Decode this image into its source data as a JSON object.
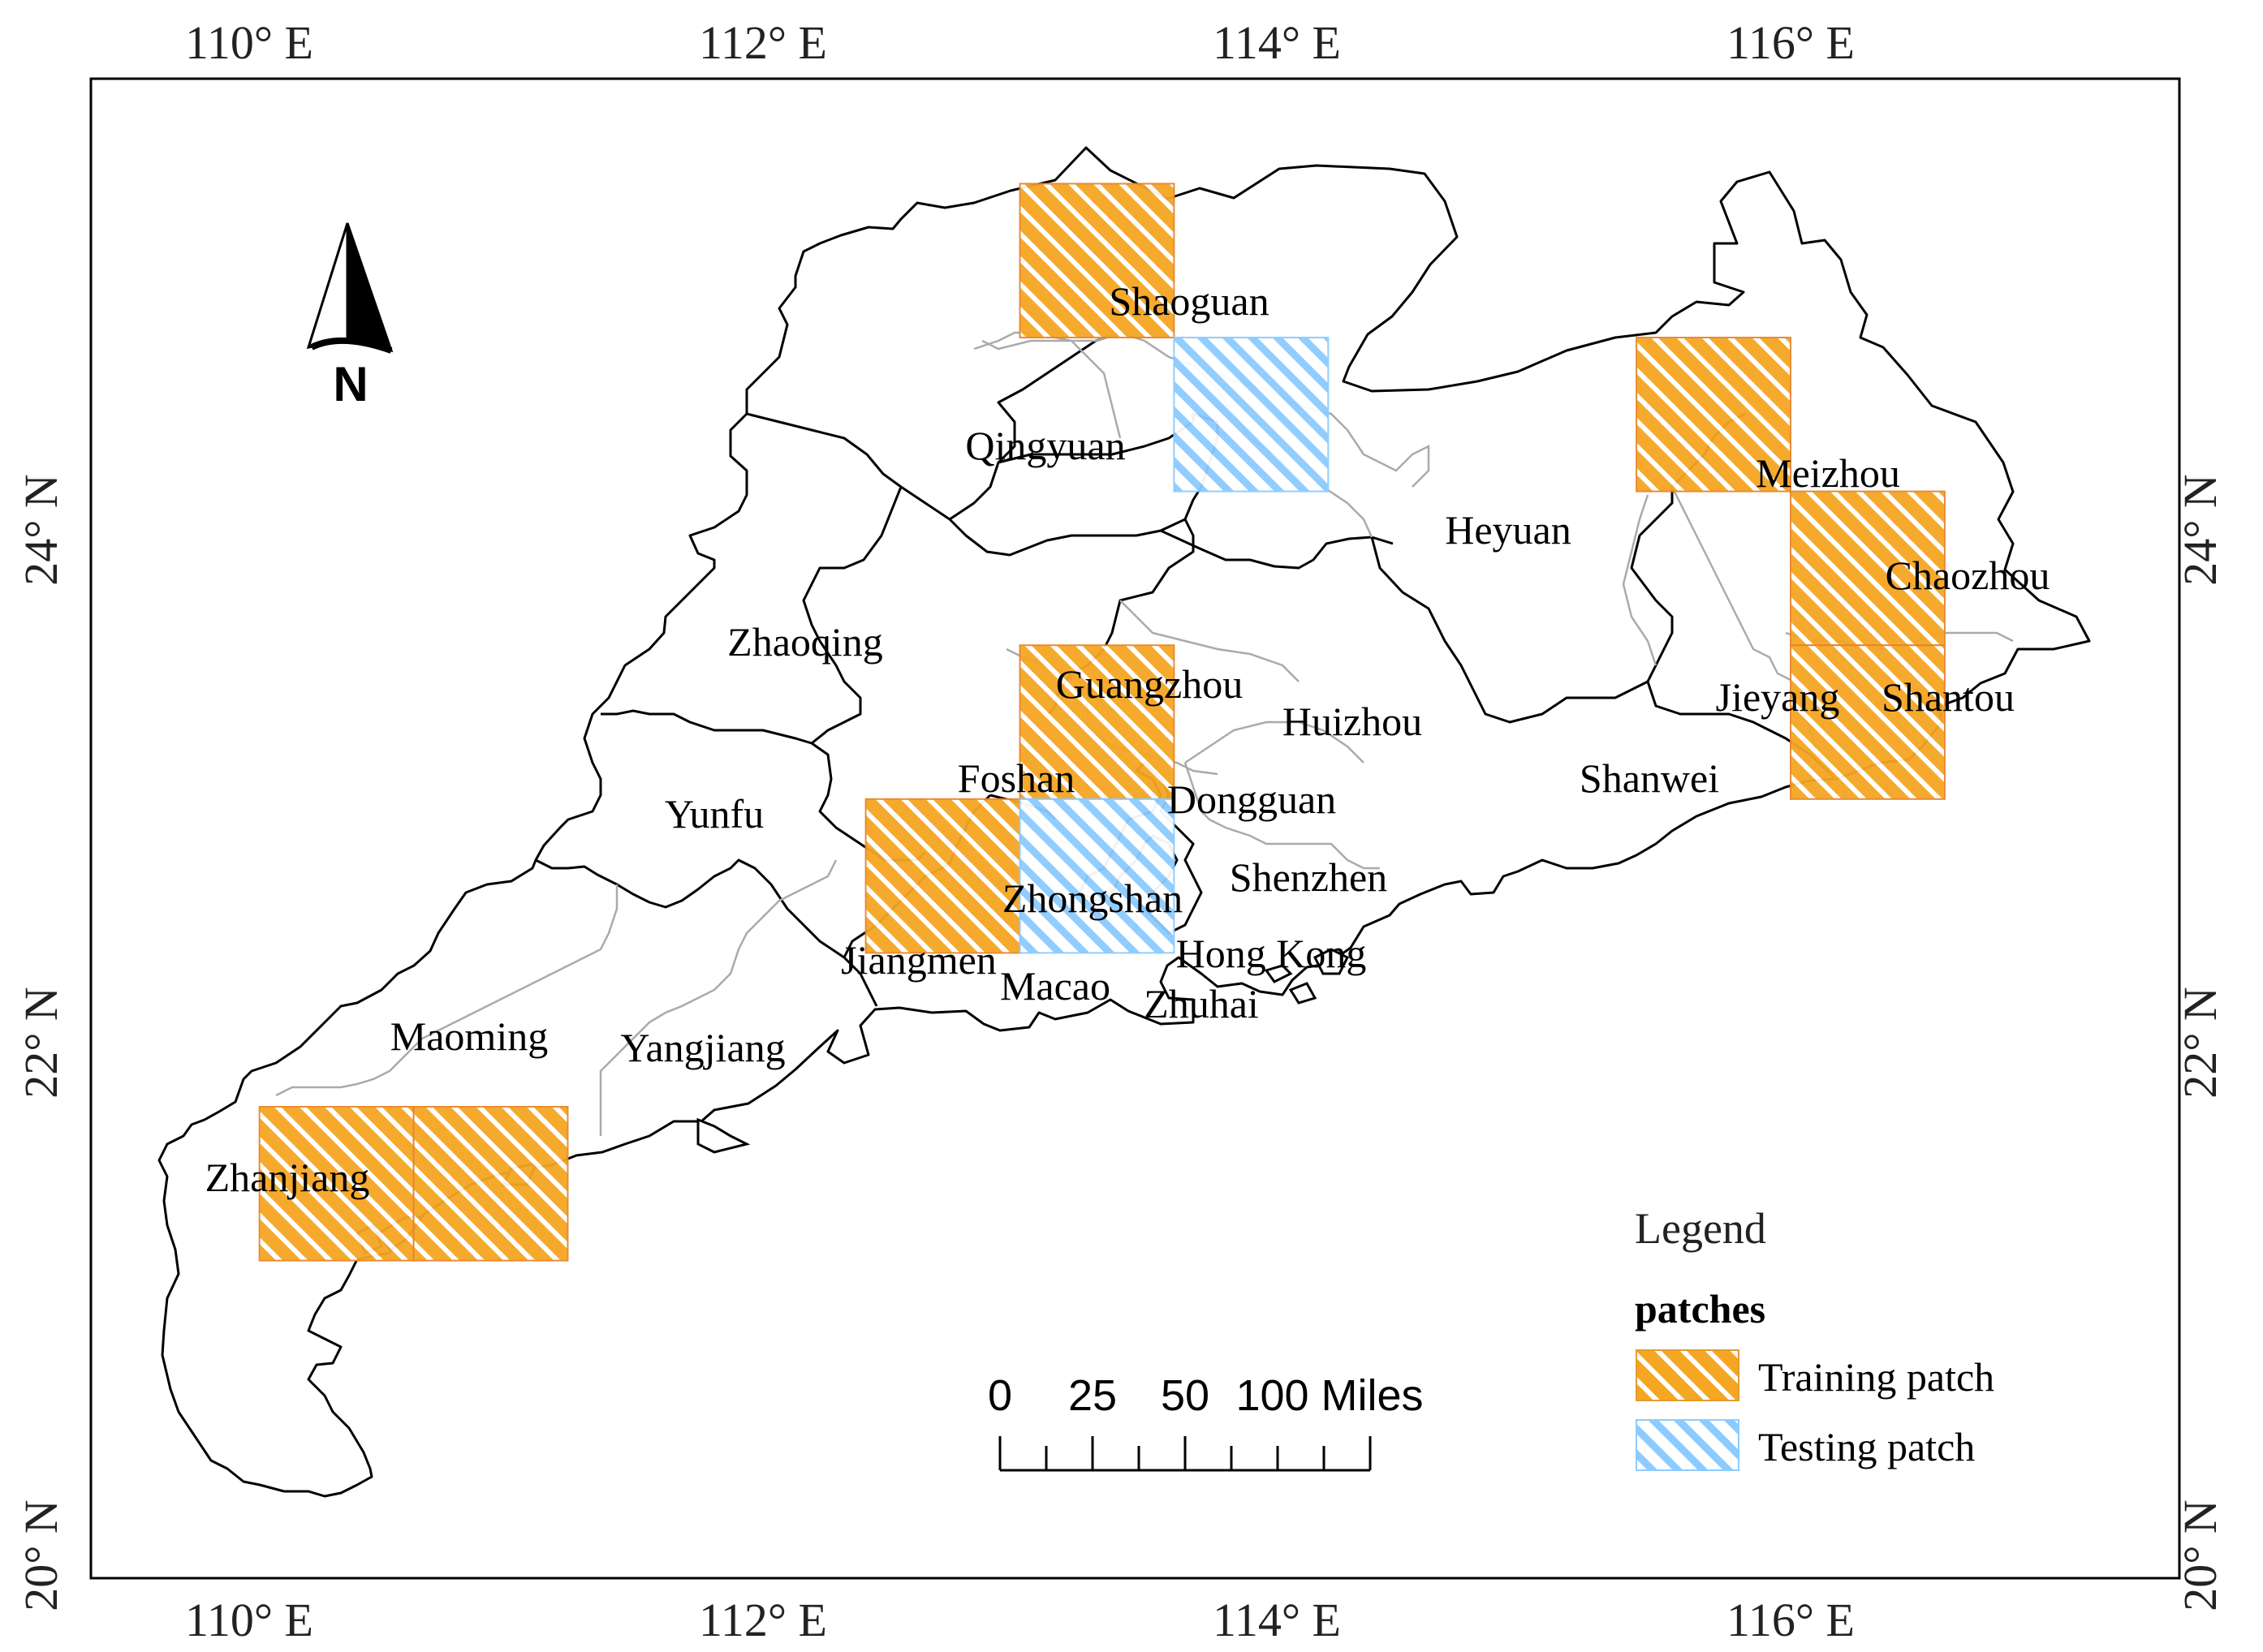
{
  "map": {
    "lon_ticks": [
      {
        "label": "110° E",
        "lon": 110
      },
      {
        "label": "112° E",
        "lon": 112
      },
      {
        "label": "114° E",
        "lon": 114
      },
      {
        "label": "116° E",
        "lon": 116
      }
    ],
    "lat_ticks": [
      {
        "label": "20° N",
        "lat": 20
      },
      {
        "label": "22° N",
        "lat": 22
      },
      {
        "label": "24° N",
        "lat": 24
      }
    ],
    "cities": [
      {
        "name": "Shaoguan"
      },
      {
        "name": "Qingyuan"
      },
      {
        "name": "Heyuan"
      },
      {
        "name": "Meizhou"
      },
      {
        "name": "Chaozhou"
      },
      {
        "name": "Zhaoqing"
      },
      {
        "name": "Guangzhou"
      },
      {
        "name": "Huizhou"
      },
      {
        "name": "Jieyang"
      },
      {
        "name": "Shantou"
      },
      {
        "name": "Foshan"
      },
      {
        "name": "Dongguan"
      },
      {
        "name": "Shanwei"
      },
      {
        "name": "Yunfu"
      },
      {
        "name": "Shenzhen"
      },
      {
        "name": "Zhongshan"
      },
      {
        "name": "Jiangmen"
      },
      {
        "name": "Hong Kong"
      },
      {
        "name": "Macao"
      },
      {
        "name": "Zhuhai"
      },
      {
        "name": "Maoming"
      },
      {
        "name": "Yangjiang"
      },
      {
        "name": "Zhanjiang"
      }
    ],
    "patches": {
      "training": [
        {
          "lon": [
            113.0,
            113.6
          ],
          "lat": [
            24.75,
            25.35
          ]
        },
        {
          "lon": [
            115.4,
            116.0
          ],
          "lat": [
            24.15,
            24.75
          ]
        },
        {
          "lon": [
            116.0,
            116.6
          ],
          "lat": [
            23.55,
            24.15
          ]
        },
        {
          "lon": [
            116.0,
            116.6
          ],
          "lat": [
            22.95,
            23.55
          ]
        },
        {
          "lon": [
            113.0,
            113.6
          ],
          "lat": [
            22.95,
            23.55
          ]
        },
        {
          "lon": [
            112.4,
            113.0
          ],
          "lat": [
            22.35,
            22.95
          ]
        },
        {
          "lon": [
            110.04,
            110.64
          ],
          "lat": [
            21.15,
            21.75
          ]
        },
        {
          "lon": [
            110.64,
            111.24
          ],
          "lat": [
            21.15,
            21.75
          ]
        }
      ],
      "testing": [
        {
          "lon": [
            113.6,
            114.2
          ],
          "lat": [
            24.15,
            24.75
          ]
        },
        {
          "lon": [
            113.0,
            113.6
          ],
          "lat": [
            22.35,
            22.95
          ]
        }
      ]
    },
    "colors": {
      "training_fill": "#f5a623",
      "training_hatch": "#ffffff",
      "testing_fill": "#bfe3ff",
      "testing_hatch": "#ffffff",
      "boundary": "#000000",
      "inner_boundary": "#aaaaaa"
    }
  },
  "north_arrow": {
    "label": "N"
  },
  "scale_bar": {
    "labels": [
      "0",
      "25",
      "50",
      "100 Miles"
    ],
    "values": [
      0,
      25,
      50,
      100
    ]
  },
  "legend": {
    "title": "Legend",
    "heading": "patches",
    "items": [
      {
        "label": "Training patch",
        "type": "training"
      },
      {
        "label": "Testing patch",
        "type": "testing"
      }
    ]
  }
}
